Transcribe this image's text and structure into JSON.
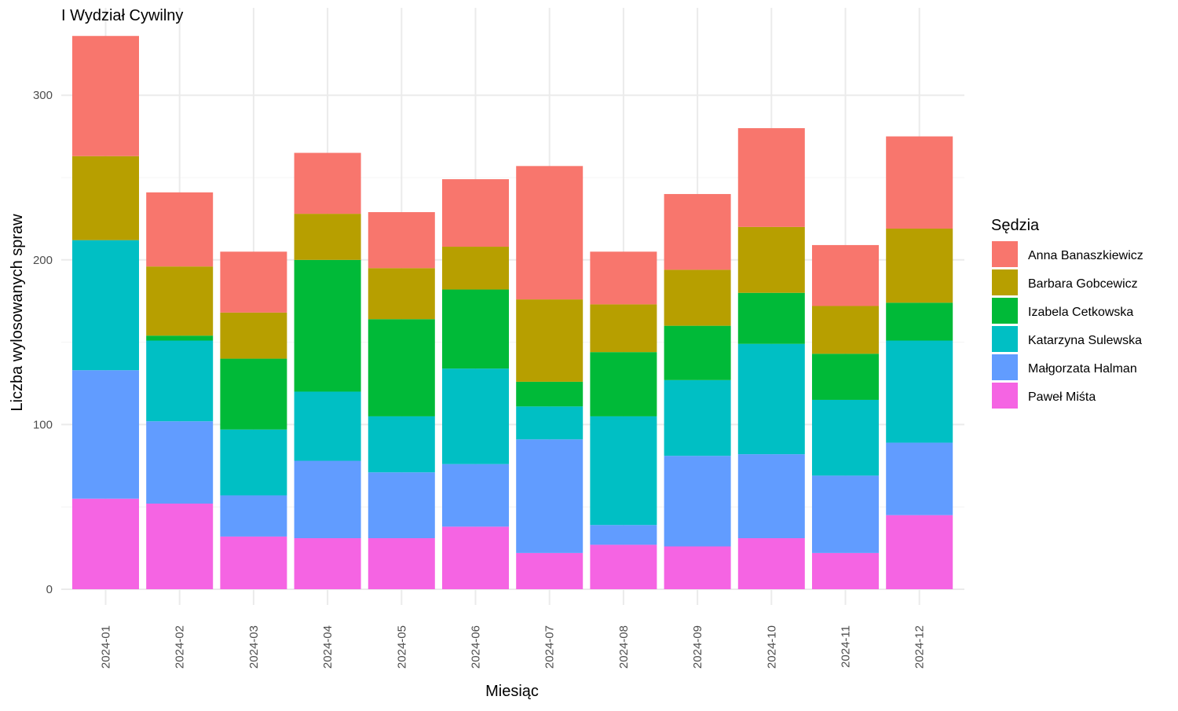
{
  "chart_data": {
    "type": "bar",
    "stacked": true,
    "title": "I Wydział Cywilny",
    "xlabel": "Miesiąc",
    "ylabel": "Liczba wylosowanych spraw",
    "ylim": [
      0,
      335
    ],
    "yticks": [
      0,
      100,
      200,
      300
    ],
    "grid": true,
    "legend": {
      "title": "Sędzia",
      "position": "right"
    },
    "categories": [
      "2024-01",
      "2024-02",
      "2024-03",
      "2024-04",
      "2024-05",
      "2024-06",
      "2024-07",
      "2024-08",
      "2024-09",
      "2024-10",
      "2024-11",
      "2024-12"
    ],
    "series": [
      {
        "name": "Paweł Miśta",
        "color": "#F564E3",
        "values": [
          55,
          52,
          32,
          31,
          31,
          38,
          22,
          27,
          26,
          31,
          22,
          45
        ]
      },
      {
        "name": "Małgorzata Halman",
        "color": "#619CFF",
        "values": [
          78,
          50,
          25,
          47,
          40,
          38,
          69,
          12,
          55,
          51,
          47,
          44
        ]
      },
      {
        "name": "Katarzyna Sulewska",
        "color": "#00BFC4",
        "values": [
          79,
          49,
          40,
          42,
          34,
          58,
          20,
          66,
          46,
          67,
          46,
          62
        ]
      },
      {
        "name": "Izabela Cetkowska",
        "color": "#00BA38",
        "values": [
          0,
          3,
          43,
          80,
          59,
          48,
          15,
          39,
          33,
          31,
          28,
          23
        ]
      },
      {
        "name": "Barbara Gobcewicz",
        "color": "#B79F00",
        "values": [
          51,
          42,
          28,
          28,
          31,
          26,
          50,
          29,
          34,
          40,
          29,
          45
        ]
      },
      {
        "name": "Anna Banaszkiewicz",
        "color": "#F8766D",
        "values": [
          73,
          45,
          37,
          37,
          34,
          41,
          81,
          32,
          46,
          60,
          37,
          56
        ]
      }
    ],
    "legend_order": [
      "Anna Banaszkiewicz",
      "Barbara Gobcewicz",
      "Izabela Cetkowska",
      "Katarzyna Sulewska",
      "Małgorzata Halman",
      "Paweł Miśta"
    ]
  }
}
